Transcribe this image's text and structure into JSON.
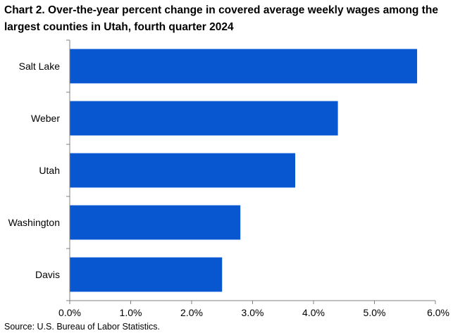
{
  "chart_data": {
    "type": "bar",
    "orientation": "horizontal",
    "title": "Chart 2. Over-the-year percent change in covered average weekly wages among the largest counties in Utah, fourth quarter 2024",
    "categories": [
      "Salt Lake",
      "Weber",
      "Utah",
      "Washington",
      "Davis"
    ],
    "values": [
      5.7,
      4.4,
      3.7,
      2.8,
      2.5
    ],
    "xlim": [
      0,
      6
    ],
    "xticks": [
      "0.0%",
      "1.0%",
      "2.0%",
      "3.0%",
      "4.0%",
      "5.0%",
      "6.0%"
    ],
    "xlabel": "",
    "ylabel": "",
    "grid": false,
    "bar_color": "#0957d0"
  },
  "footer": {
    "source": "Source: U.S. Bureau of Labor Statistics."
  }
}
